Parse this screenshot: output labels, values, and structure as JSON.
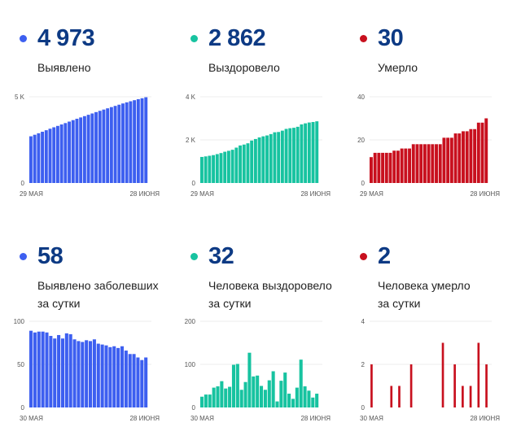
{
  "chart_data": [
    {
      "type": "bar",
      "title": "Выявлено",
      "headline_value": "4 973",
      "color": "#3d5ff0",
      "xlabel_start": "29 МАЯ",
      "xlabel_end": "28 ИЮНЯ",
      "yticks": [
        {
          "value": 0,
          "label": "0"
        },
        {
          "value": 5000,
          "label": "5 K"
        }
      ],
      "ylim": [
        0,
        5000
      ],
      "values": [
        2709,
        2798,
        2885,
        2973,
        3061,
        3148,
        3231,
        3311,
        3395,
        3475,
        3561,
        3646,
        3725,
        3802,
        3878,
        3956,
        4033,
        4112,
        4186,
        4259,
        4331,
        4401,
        4472,
        4541,
        4612,
        4678,
        4740,
        4802,
        4860,
        4915,
        4973
      ]
    },
    {
      "type": "bar",
      "title": "Выздоровело",
      "headline_value": "2 862",
      "color": "#17c3a0",
      "xlabel_start": "29 МАЯ",
      "xlabel_end": "28 ИЮНЯ",
      "yticks": [
        {
          "value": 0,
          "label": "0"
        },
        {
          "value": 2000,
          "label": "2 K"
        },
        {
          "value": 4000,
          "label": "4 K"
        }
      ],
      "ylim": [
        0,
        4000
      ],
      "values": [
        1209,
        1234,
        1264,
        1294,
        1340,
        1389,
        1450,
        1494,
        1542,
        1641,
        1742,
        1783,
        1842,
        1969,
        2041,
        2115,
        2165,
        2206,
        2269,
        2353,
        2367,
        2429,
        2510,
        2542,
        2562,
        2608,
        2719,
        2768,
        2807,
        2830,
        2862
      ]
    },
    {
      "type": "bar",
      "title": "Умерло",
      "headline_value": "30",
      "color": "#c8101e",
      "xlabel_start": "29 МАЯ",
      "xlabel_end": "28 ИЮНЯ",
      "yticks": [
        {
          "value": 0,
          "label": "0"
        },
        {
          "value": 20,
          "label": "20"
        },
        {
          "value": 40,
          "label": "40"
        }
      ],
      "ylim": [
        0,
        40
      ],
      "values": [
        12,
        14,
        14,
        14,
        14,
        14,
        15,
        15,
        16,
        16,
        16,
        18,
        18,
        18,
        18,
        18,
        18,
        18,
        18,
        21,
        21,
        21,
        23,
        23,
        24,
        24,
        25,
        25,
        28,
        28,
        30
      ]
    },
    {
      "type": "bar",
      "title": "Выявлено заболевших за сутки",
      "headline_value": "58",
      "color": "#3d5ff0",
      "xlabel_start": "30 МАЯ",
      "xlabel_end": "28 ИЮНЯ",
      "yticks": [
        {
          "value": 0,
          "label": "0"
        },
        {
          "value": 50,
          "label": "50"
        },
        {
          "value": 100,
          "label": "100"
        }
      ],
      "ylim": [
        0,
        100
      ],
      "values": [
        89,
        87,
        88,
        88,
        87,
        83,
        80,
        84,
        80,
        86,
        85,
        79,
        77,
        76,
        78,
        77,
        79,
        74,
        73,
        72,
        70,
        71,
        69,
        71,
        66,
        62,
        62,
        58,
        55,
        58
      ]
    },
    {
      "type": "bar",
      "title": "Человека выздоровело за сутки",
      "headline_value": "32",
      "color": "#17c3a0",
      "xlabel_start": "30 МАЯ",
      "xlabel_end": "28 ИЮНЯ",
      "yticks": [
        {
          "value": 0,
          "label": "0"
        },
        {
          "value": 100,
          "label": "100"
        },
        {
          "value": 200,
          "label": "200"
        }
      ],
      "ylim": [
        0,
        200
      ],
      "values": [
        25,
        30,
        30,
        46,
        49,
        61,
        44,
        48,
        99,
        101,
        41,
        59,
        127,
        72,
        74,
        50,
        41,
        63,
        84,
        14,
        62,
        81,
        32,
        20,
        46,
        111,
        49,
        39,
        23,
        32
      ]
    },
    {
      "type": "bar",
      "title": "Человека умерло за сутки",
      "headline_value": "2",
      "color": "#c8101e",
      "xlabel_start": "30 МАЯ",
      "xlabel_end": "28 ИЮНЯ",
      "yticks": [
        {
          "value": 0,
          "label": "0"
        },
        {
          "value": 2,
          "label": "2"
        },
        {
          "value": 4,
          "label": "4"
        }
      ],
      "ylim": [
        0,
        4
      ],
      "values": [
        2,
        0,
        0,
        0,
        0,
        1,
        0,
        1,
        0,
        0,
        2,
        0,
        0,
        0,
        0,
        0,
        0,
        0,
        3,
        0,
        0,
        2,
        0,
        1,
        0,
        1,
        0,
        3,
        0,
        2
      ],
      "narrow_bars": true
    }
  ],
  "cards": [
    {
      "value": "4 973",
      "label_line1": "Выявлено",
      "label_line2": ""
    },
    {
      "value": "2 862",
      "label_line1": "Выздоровело",
      "label_line2": ""
    },
    {
      "value": "30",
      "label_line1": "Умерло",
      "label_line2": ""
    },
    {
      "value": "58",
      "label_line1": "Выявлено заболевших",
      "label_line2": "за сутки"
    },
    {
      "value": "32",
      "label_line1": "Человека выздоровело",
      "label_line2": "за сутки"
    },
    {
      "value": "2",
      "label_line1": "Человека умерло",
      "label_line2": "за сутки"
    }
  ],
  "colors": {
    "cases": "#3d5ff0",
    "recovered": "#17c3a0",
    "deaths": "#c8101e",
    "headline": "#0d3a84"
  }
}
